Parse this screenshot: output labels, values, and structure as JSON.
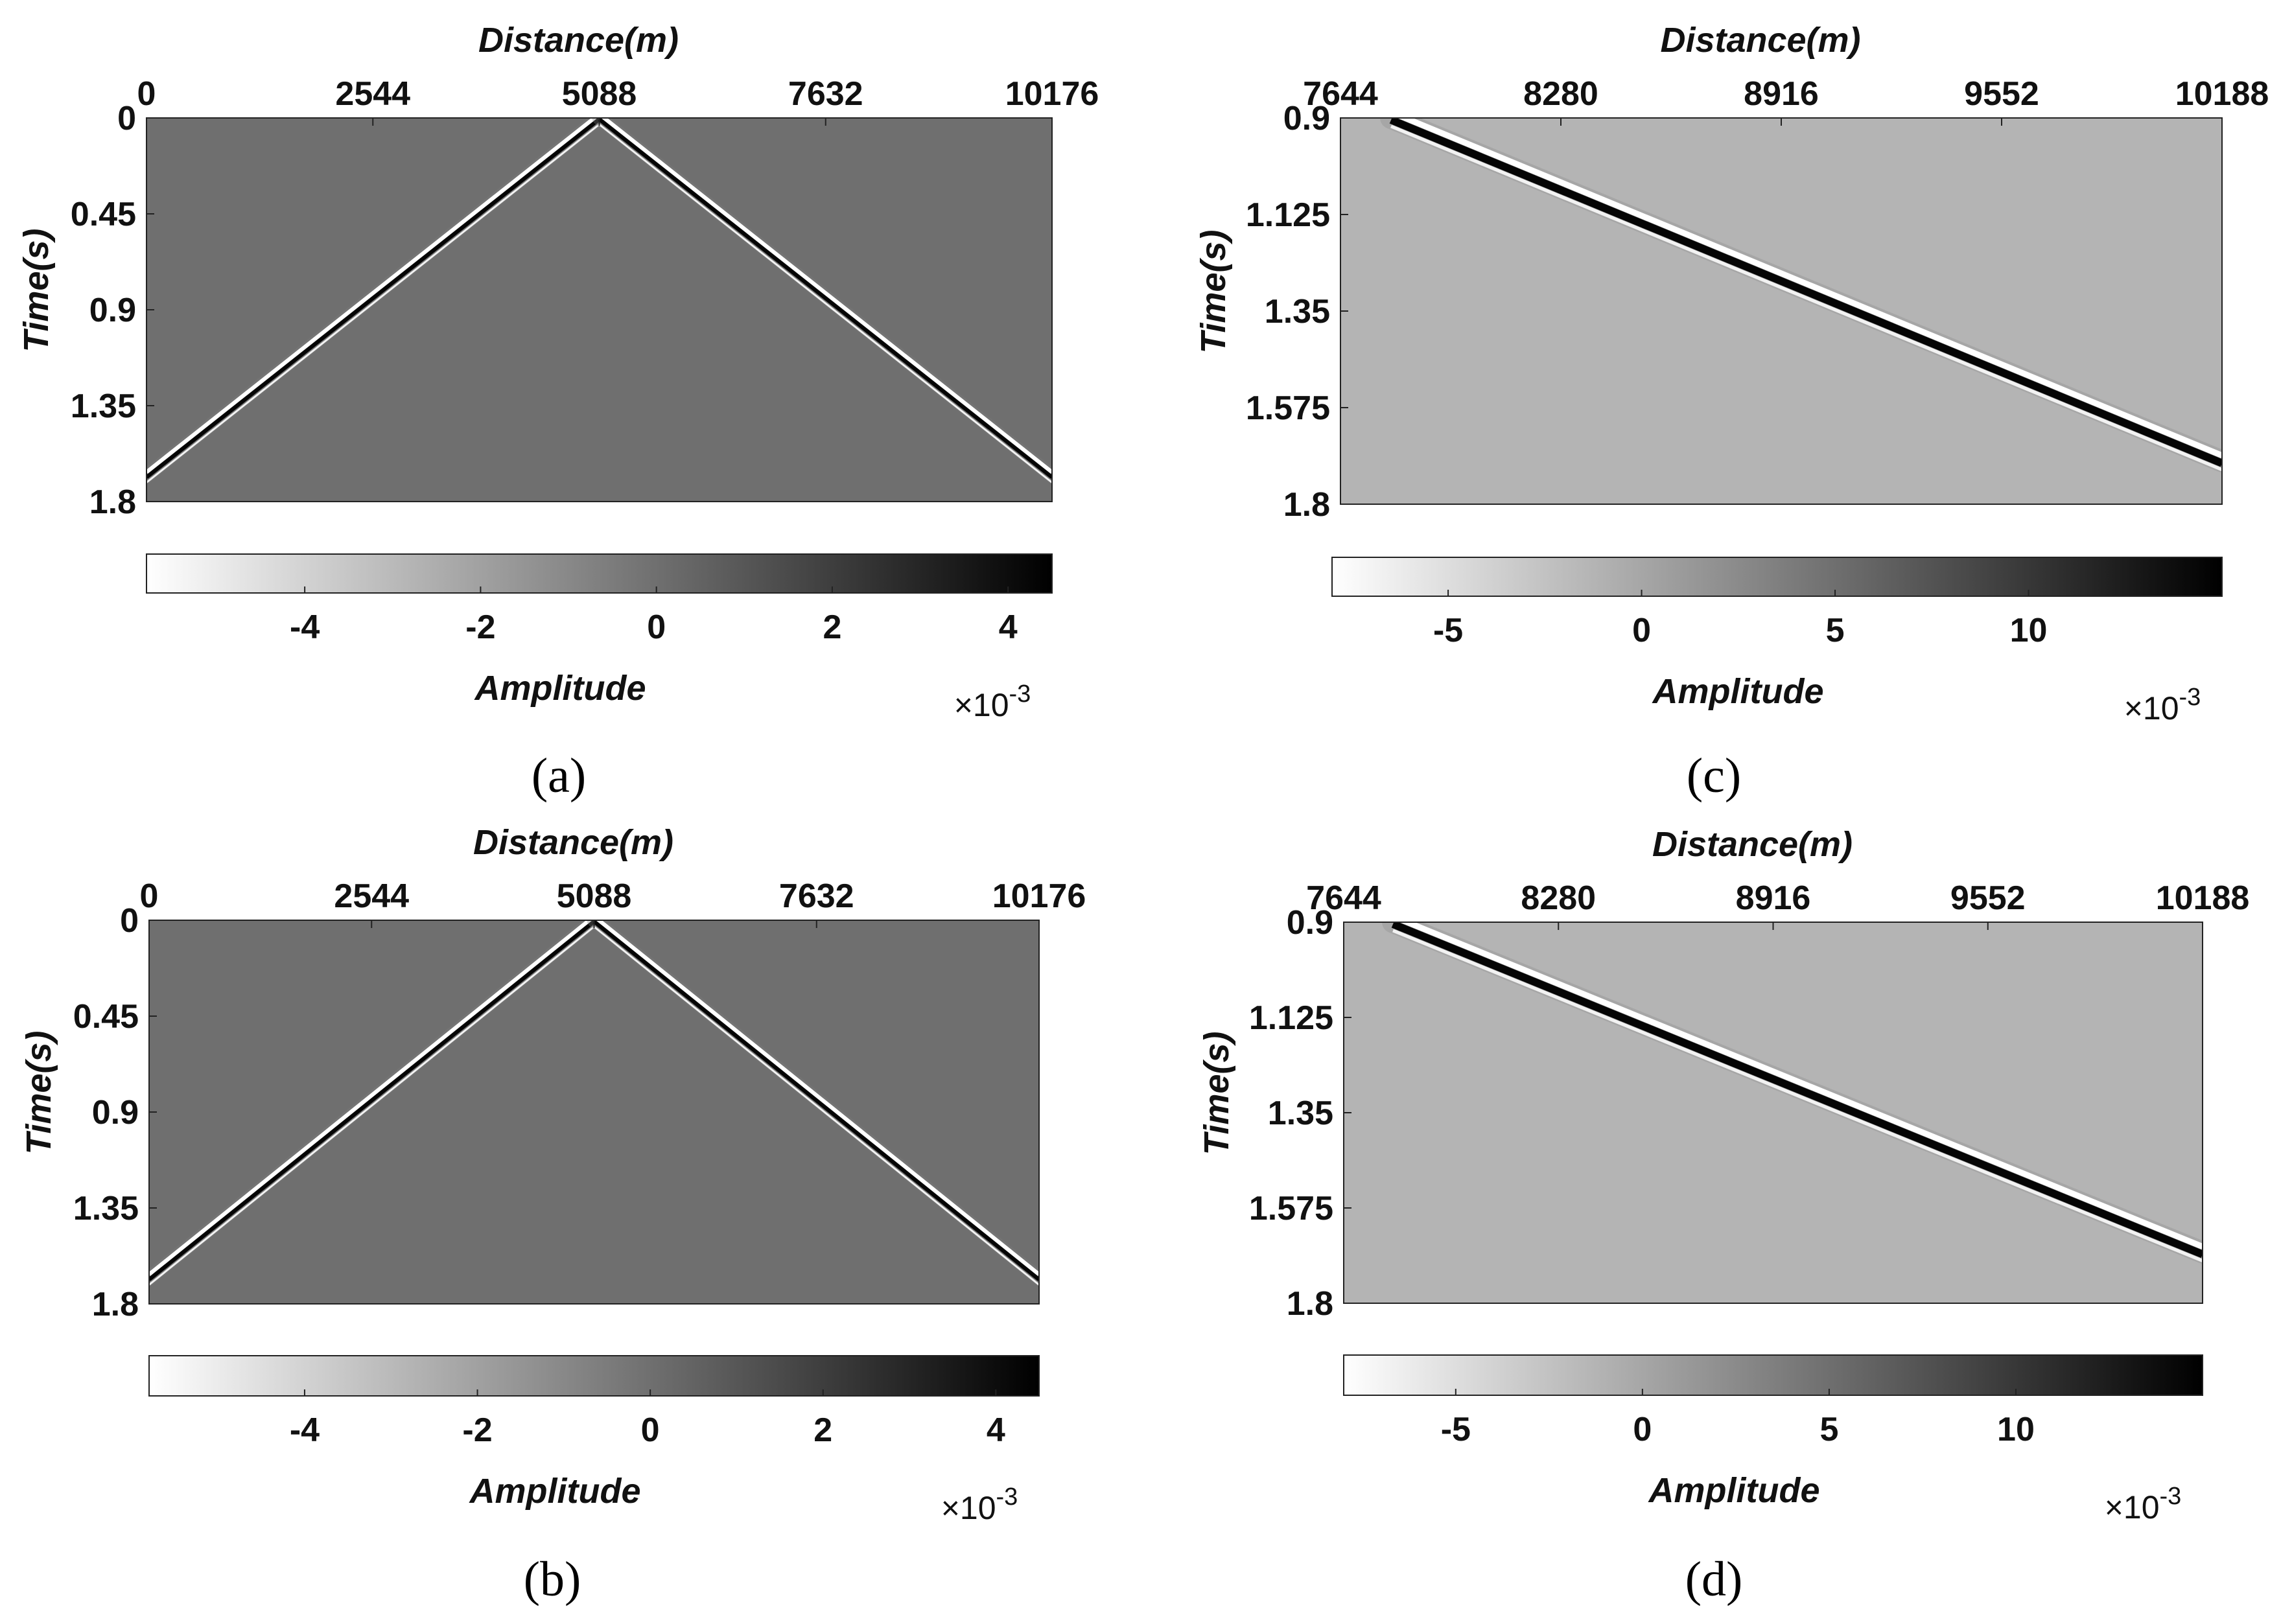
{
  "figure": {
    "panels_order": [
      "a",
      "b",
      "c",
      "d"
    ]
  },
  "chart_data": [
    {
      "id": "a",
      "type": "heatmap",
      "caption_letter": "a",
      "xlabel": "Distance(m)",
      "ylabel": "Time(s)",
      "xlim": [
        0,
        10176
      ],
      "ylim": [
        0,
        1.8
      ],
      "xticks": [
        0,
        2544,
        5088,
        7632,
        10176
      ],
      "xtick_labels": [
        "0",
        "2544",
        "5088",
        "7632",
        "10176"
      ],
      "yticks": [
        0,
        0.45,
        0.9,
        1.35,
        1.8
      ],
      "ytick_labels": [
        "0",
        "0.45",
        "0.9",
        "1.35",
        "1.8"
      ],
      "background_amplitude": 0,
      "events": [
        {
          "name": "left-direct-wave",
          "points": [
            [
              5088,
              0
            ],
            [
              0,
              1.68
            ]
          ]
        },
        {
          "name": "right-direct-wave",
          "points": [
            [
              5088,
              0
            ],
            [
              10176,
              1.68
            ]
          ]
        }
      ],
      "colorbar": {
        "label": "Amplitude",
        "range": [
          -5.8,
          4.5
        ],
        "ticks": [
          -4,
          -2,
          0,
          2,
          4
        ],
        "tick_labels": [
          "-4",
          "-2",
          "0",
          "2",
          "4"
        ],
        "multiplier": "×10",
        "exponent": "-3",
        "colormap": [
          "#ffffff",
          "#000000"
        ]
      }
    },
    {
      "id": "b",
      "type": "heatmap",
      "caption_letter": "b",
      "xlabel": "Distance(m)",
      "ylabel": "Time(s)",
      "xlim": [
        0,
        10176
      ],
      "ylim": [
        0,
        1.8
      ],
      "xticks": [
        0,
        2544,
        5088,
        7632,
        10176
      ],
      "xtick_labels": [
        "0",
        "2544",
        "5088",
        "7632",
        "10176"
      ],
      "yticks": [
        0,
        0.45,
        0.9,
        1.35,
        1.8
      ],
      "ytick_labels": [
        "0",
        "0.45",
        "0.9",
        "1.35",
        "1.8"
      ],
      "background_amplitude": 0,
      "events": [
        {
          "name": "left-direct-wave",
          "points": [
            [
              5088,
              0
            ],
            [
              0,
              1.68
            ]
          ]
        },
        {
          "name": "right-direct-wave",
          "points": [
            [
              5088,
              0
            ],
            [
              10176,
              1.68
            ]
          ]
        }
      ],
      "colorbar": {
        "label": "Amplitude",
        "range": [
          -5.8,
          4.5
        ],
        "ticks": [
          -4,
          -2,
          0,
          2,
          4
        ],
        "tick_labels": [
          "-4",
          "-2",
          "0",
          "2",
          "4"
        ],
        "multiplier": "×10",
        "exponent": "-3",
        "colormap": [
          "#ffffff",
          "#000000"
        ]
      }
    },
    {
      "id": "c",
      "type": "heatmap",
      "caption_letter": "c",
      "xlabel": "Distance(m)",
      "ylabel": "Time(s)",
      "xlim": [
        7644,
        10188
      ],
      "ylim": [
        0.9,
        1.8
      ],
      "xticks": [
        7644,
        8280,
        8916,
        9552,
        10188
      ],
      "xtick_labels": [
        "7644",
        "8280",
        "8916",
        "9552",
        "10188"
      ],
      "yticks": [
        0.9,
        1.125,
        1.35,
        1.575,
        1.8
      ],
      "ytick_labels": [
        "0.9",
        "1.125",
        "1.35",
        "1.575",
        "1.8"
      ],
      "background_amplitude": -1.2,
      "events": [
        {
          "name": "direct-wave",
          "points": [
            [
              7790,
              0.9
            ],
            [
              10188,
              1.7
            ]
          ]
        }
      ],
      "colorbar": {
        "label": "Amplitude",
        "range": [
          -8,
          15
        ],
        "ticks": [
          -5,
          0,
          5,
          10
        ],
        "tick_labels": [
          "-5",
          "0",
          "5",
          "10"
        ],
        "multiplier": "×10",
        "exponent": "-3",
        "colormap": [
          "#ffffff",
          "#000000"
        ]
      }
    },
    {
      "id": "d",
      "type": "heatmap",
      "caption_letter": "d",
      "xlabel": "Distance(m)",
      "ylabel": "Time(s)",
      "xlim": [
        7644,
        10188
      ],
      "ylim": [
        0.9,
        1.8
      ],
      "xticks": [
        7644,
        8280,
        8916,
        9552,
        10188
      ],
      "xtick_labels": [
        "7644",
        "8280",
        "8916",
        "9552",
        "10188"
      ],
      "yticks": [
        0.9,
        1.125,
        1.35,
        1.575,
        1.8
      ],
      "ytick_labels": [
        "0.9",
        "1.125",
        "1.35",
        "1.575",
        "1.8"
      ],
      "background_amplitude": -1.2,
      "events": [
        {
          "name": "direct-wave",
          "points": [
            [
              7790,
              0.9
            ],
            [
              10188,
              1.68
            ]
          ]
        }
      ],
      "colorbar": {
        "label": "Amplitude",
        "range": [
          -8,
          15
        ],
        "ticks": [
          -5,
          0,
          5,
          10
        ],
        "tick_labels": [
          "-5",
          "0",
          "5",
          "10"
        ],
        "multiplier": "×10",
        "exponent": "-3",
        "colormap": [
          "#ffffff",
          "#000000"
        ]
      }
    }
  ]
}
